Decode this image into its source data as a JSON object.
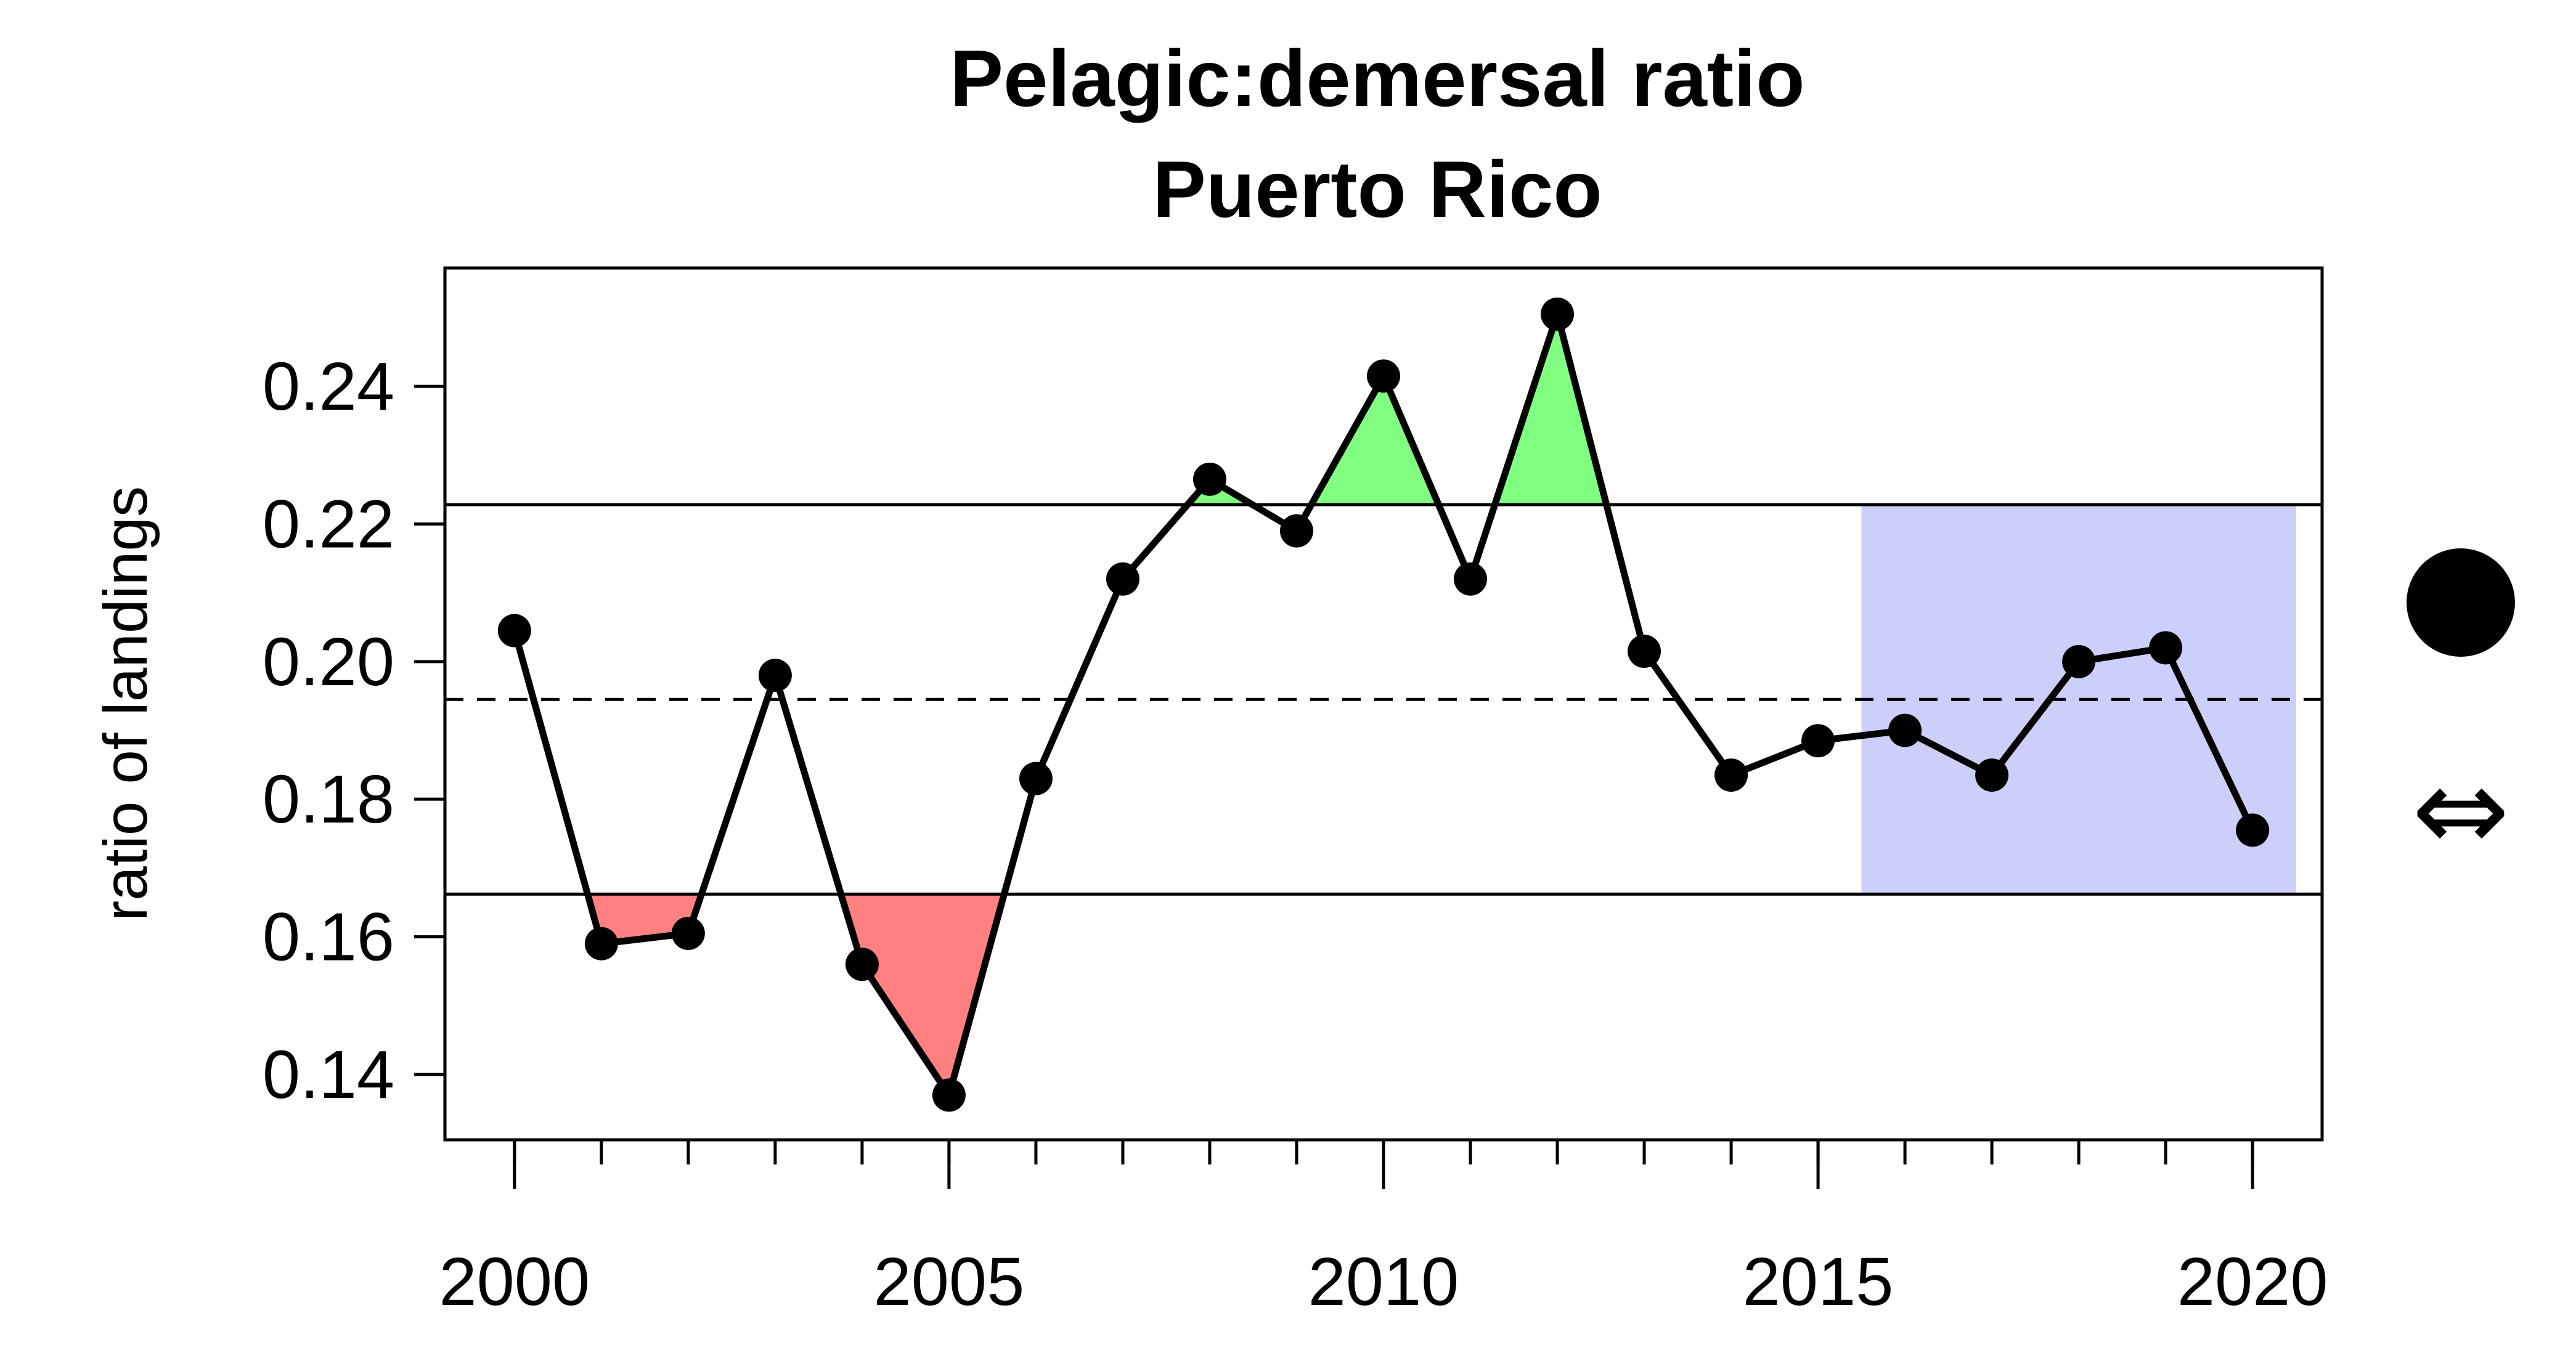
{
  "chart_data": {
    "type": "line",
    "title": "Pelagic:demersal ratio",
    "subtitle": "Puerto Rico",
    "xlabel": "",
    "ylabel": "ratio of landings",
    "x": [
      2000,
      2001,
      2002,
      2003,
      2004,
      2005,
      2006,
      2007,
      2008,
      2009,
      2010,
      2011,
      2012,
      2013,
      2014,
      2015,
      2016,
      2017,
      2018,
      2019,
      2020
    ],
    "values": [
      0.2045,
      0.159,
      0.1605,
      0.198,
      0.156,
      0.137,
      0.183,
      0.212,
      0.2265,
      0.219,
      0.2415,
      0.212,
      0.2505,
      0.2015,
      0.1835,
      0.1885,
      0.19,
      0.1835,
      0.2,
      0.202,
      0.1755
    ],
    "xlim": [
      1999.2,
      2020.8
    ],
    "ylim": [
      0.1305,
      0.2572
    ],
    "x_ticks": [
      "2000",
      "2005",
      "2010",
      "2015",
      "2020"
    ],
    "x_tick_values": [
      2000,
      2005,
      2010,
      2015,
      2020
    ],
    "x_minor_ticks": [
      2000,
      2001,
      2002,
      2003,
      2004,
      2005,
      2006,
      2007,
      2008,
      2009,
      2010,
      2011,
      2012,
      2013,
      2014,
      2015,
      2016,
      2017,
      2018,
      2019,
      2020
    ],
    "y_ticks": [
      "0.14",
      "0.16",
      "0.18",
      "0.20",
      "0.22",
      "0.24"
    ],
    "y_tick_values": [
      0.14,
      0.16,
      0.18,
      0.2,
      0.22,
      0.24
    ],
    "mean": 0.1945,
    "upper_sd": 0.2228,
    "lower_sd": 0.1662,
    "recent_period": [
      2015.5,
      2020.5
    ],
    "colors": {
      "line": "#000000",
      "above": "#80ff80",
      "below": "#ff8080",
      "recent": "#cccffa"
    },
    "indicators": {
      "mean_symbol": "filled-circle",
      "trend_symbol": "⇔"
    }
  }
}
